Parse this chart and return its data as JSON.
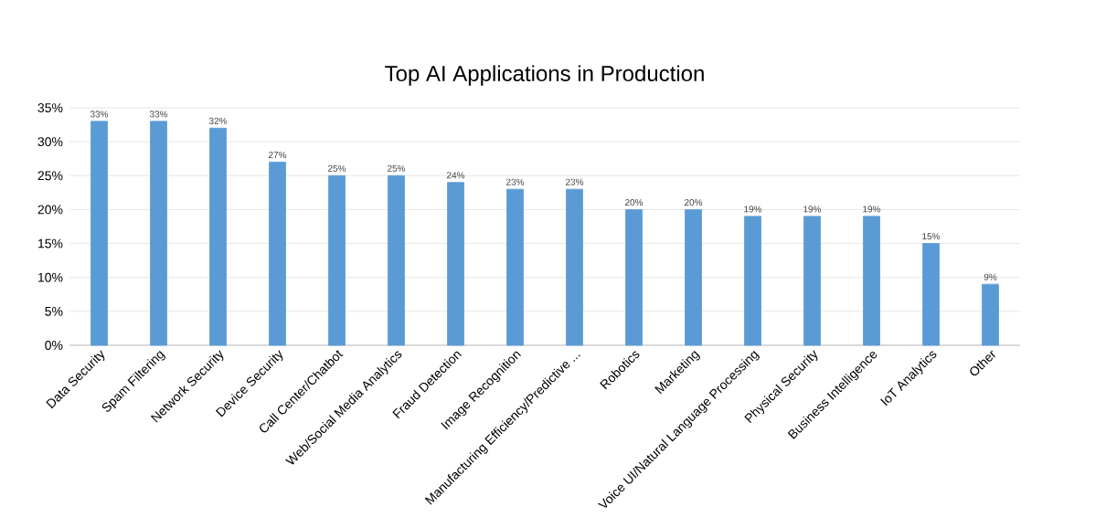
{
  "chart_data": {
    "type": "bar",
    "title": "Top AI Applications in Production",
    "categories": [
      "Data Security",
      "Spam Filtering",
      "Network Security",
      "Device Security",
      "Call Center/Chatbot",
      "Web/Social Media Analytics",
      "Fraud Detection",
      "Image Recognition",
      "Manufacturing Efficiency/Predictive ...",
      "Robotics",
      "Marketing",
      "Voice UI/Natural Language Processing",
      "Physical Security",
      "Business Intelligence",
      "IoT Analytics",
      "Other"
    ],
    "values": [
      33,
      33,
      32,
      27,
      25,
      25,
      24,
      23,
      23,
      20,
      20,
      19,
      19,
      19,
      15,
      9
    ],
    "value_labels": [
      "33%",
      "33%",
      "32%",
      "27%",
      "25%",
      "25%",
      "24%",
      "23%",
      "23%",
      "20%",
      "20%",
      "19%",
      "19%",
      "19%",
      "15%",
      "9%"
    ],
    "color": "#5b9bd5",
    "ylim": [
      0,
      35
    ],
    "yticks": [
      {
        "value": 0,
        "label": "0%"
      },
      {
        "value": 5,
        "label": "5%"
      },
      {
        "value": 10,
        "label": "10%"
      },
      {
        "value": 15,
        "label": "15%"
      },
      {
        "value": 20,
        "label": "20%"
      },
      {
        "value": 25,
        "label": "25%"
      },
      {
        "value": 30,
        "label": "30%"
      },
      {
        "value": 35,
        "label": "35%"
      }
    ],
    "grid": "y"
  }
}
